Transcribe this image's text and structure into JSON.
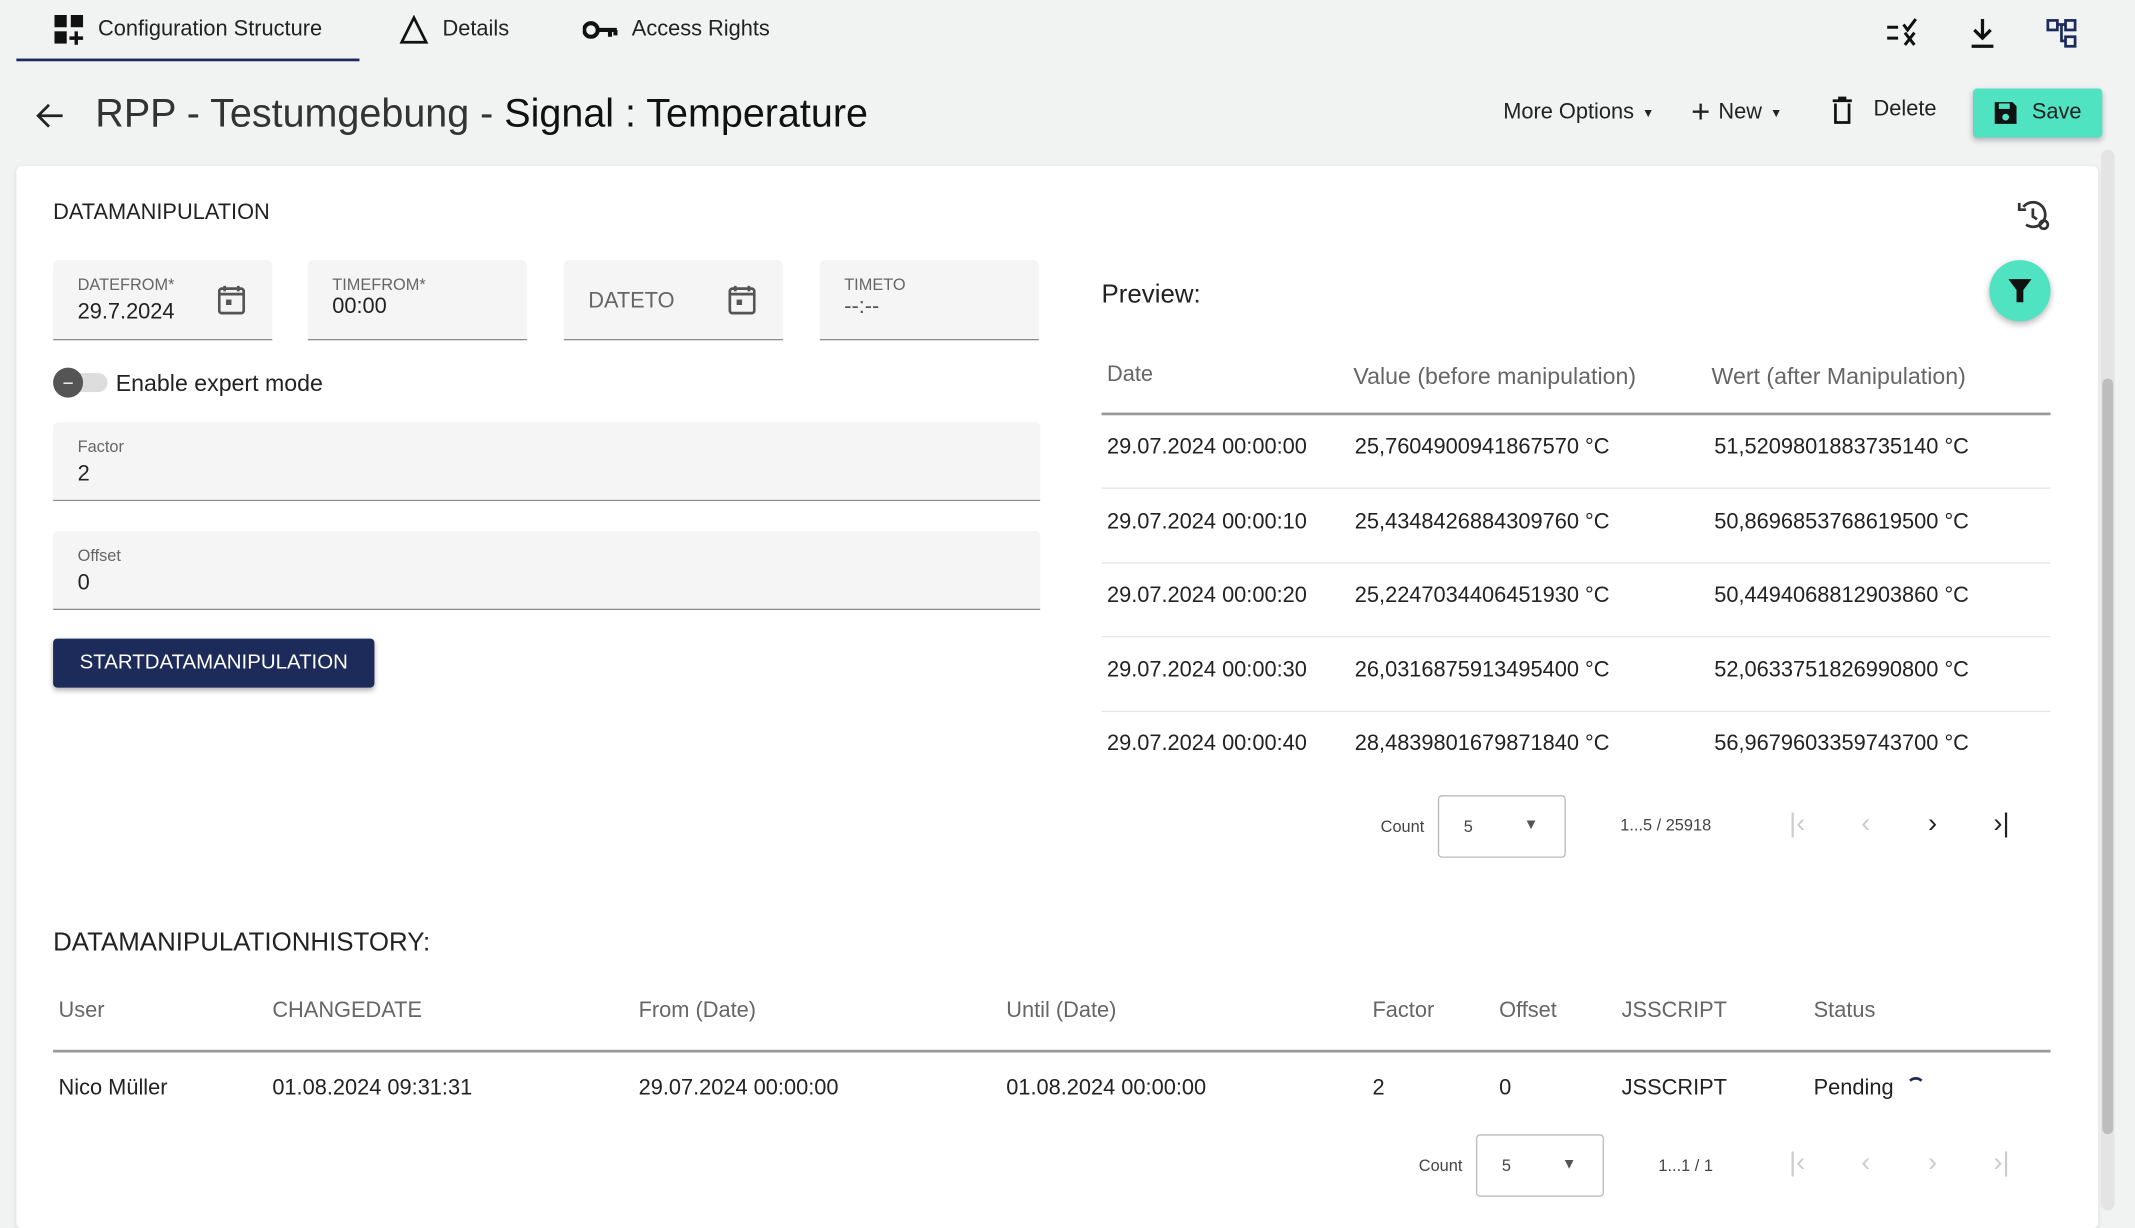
{
  "tabs": [
    {
      "label": "Configuration Structure",
      "icon": "grid-plus-icon",
      "active": true
    },
    {
      "label": "Details",
      "icon": "warning-triangle-icon"
    },
    {
      "label": "Access Rights",
      "icon": "key-icon"
    }
  ],
  "toolbar_icons": [
    "list-check-x-icon",
    "download-icon",
    "hierarchy-icon"
  ],
  "header": {
    "title_prefix": "RPP - Testumgebung - ",
    "title_main": "Signal : Temperature",
    "more_options": "More Options",
    "new": "New",
    "delete": "Delete",
    "save": "Save"
  },
  "colors": {
    "accent": "#4fe3c1",
    "primary": "#1c2b5a"
  },
  "form": {
    "section_title": "DATAMANIPULATION",
    "datefrom": {
      "label": "DATEFROM*",
      "value": "29.7.2024"
    },
    "timefrom": {
      "label": "TIMEFROM*",
      "value": "00:00"
    },
    "dateto": {
      "placeholder": "DATETO"
    },
    "timeto": {
      "label": "TIMETO",
      "value": "--:--"
    },
    "expert_mode": {
      "label": "Enable expert mode",
      "enabled": false
    },
    "factor": {
      "label": "Factor",
      "value": "2"
    },
    "offset": {
      "label": "Offset",
      "value": "0"
    },
    "start_button": "STARTDATAMANIPULATION"
  },
  "preview": {
    "title": "Preview:",
    "columns": [
      "Date",
      "Value (before manipulation)",
      "Wert (after Manipulation)"
    ],
    "rows": [
      [
        "29.07.2024 00:00:00",
        "25,7604900941867570 °C",
        "51,5209801883735140 °C"
      ],
      [
        "29.07.2024 00:00:10",
        "25,4348426884309760 °C",
        "50,8696853768619500 °C"
      ],
      [
        "29.07.2024 00:00:20",
        "25,2247034406451930 °C",
        "50,4494068812903860 °C"
      ],
      [
        "29.07.2024 00:00:30",
        "26,0316875913495400 °C",
        "52,0633751826990800 °C"
      ],
      [
        "29.07.2024 00:00:40",
        "28,4839801679871840 °C",
        "56,9679603359743700 °C"
      ]
    ],
    "count_label": "Count",
    "count": "5",
    "range": "1...5 / 25918"
  },
  "history": {
    "title": "DATAMANIPULATIONHISTORY:",
    "columns": [
      "User",
      "CHANGEDATE",
      "From (Date)",
      "Until (Date)",
      "Factor",
      "Offset",
      "JSSCRIPT",
      "Status"
    ],
    "rows": [
      [
        "Nico Müller",
        "01.08.2024 09:31:31",
        "29.07.2024 00:00:00",
        "01.08.2024 00:00:00",
        "2",
        "0",
        "JSSCRIPT",
        "Pending"
      ]
    ],
    "count_label": "Count",
    "count": "5",
    "range": "1...1 / 1"
  }
}
